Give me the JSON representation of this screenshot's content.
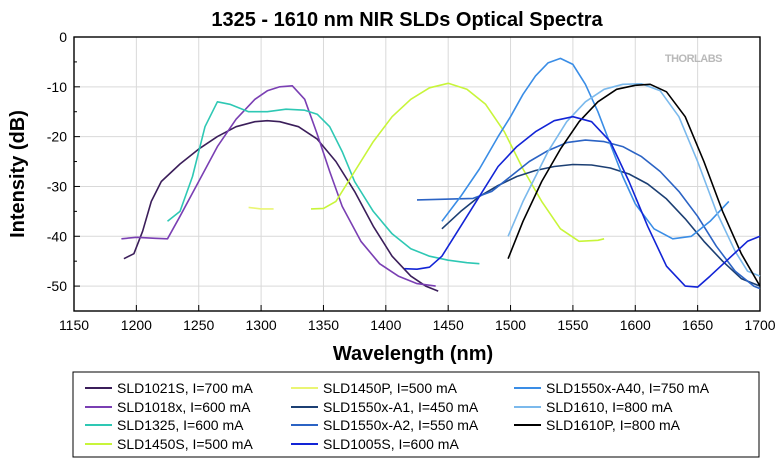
{
  "chart_data": {
    "type": "line",
    "title": "1325 - 1610 nm NIR SLDs Optical Spectra",
    "xlabel": "Wavelength (nm)",
    "ylabel": "Intensity (dB)",
    "xlim": [
      1150,
      1700
    ],
    "ylim": [
      -55,
      0
    ],
    "xticks": [
      1150,
      1200,
      1250,
      1300,
      1350,
      1400,
      1450,
      1500,
      1550,
      1600,
      1650,
      1700
    ],
    "yticks": [
      0,
      -10,
      -20,
      -30,
      -40,
      -50
    ],
    "grid": true,
    "legend_position": "bottom",
    "brand": "THORLABS",
    "series": [
      {
        "name": "SLD1021S, I=700 mA",
        "color": "#3b1e5a",
        "x": [
          1190,
          1198,
          1205,
          1212,
          1220,
          1235,
          1250,
          1265,
          1280,
          1295,
          1305,
          1315,
          1330,
          1345,
          1360,
          1375,
          1390,
          1405,
          1420,
          1432,
          1442
        ],
        "y": [
          -44.5,
          -43.5,
          -39,
          -33,
          -29,
          -25.5,
          -22.5,
          -20,
          -18,
          -17,
          -16.8,
          -17,
          -18,
          -20.5,
          -25,
          -31,
          -38,
          -44,
          -48,
          -50,
          -51
        ]
      },
      {
        "name": "SLD1018x, I=600 mA",
        "color": "#7a3fb3",
        "x": [
          1188,
          1200,
          1215,
          1225,
          1235,
          1250,
          1265,
          1280,
          1295,
          1305,
          1315,
          1325,
          1335,
          1345,
          1355,
          1365,
          1380,
          1395,
          1410,
          1425,
          1440
        ],
        "y": [
          -40.5,
          -40.2,
          -40.4,
          -40.5,
          -36,
          -29,
          -22,
          -16.5,
          -12.5,
          -10.8,
          -10,
          -9.8,
          -12.5,
          -19.5,
          -27,
          -34,
          -41,
          -45.5,
          -48,
          -49.5,
          -50
        ]
      },
      {
        "name": "SLD1325, I=600 mA",
        "color": "#2ec8b4",
        "x": [
          1225,
          1235,
          1245,
          1255,
          1265,
          1275,
          1290,
          1305,
          1320,
          1335,
          1345,
          1355,
          1365,
          1375,
          1390,
          1405,
          1420,
          1435,
          1450,
          1465,
          1475
        ],
        "y": [
          -37,
          -35,
          -28,
          -18,
          -13,
          -13.5,
          -15,
          -15,
          -14.5,
          -14.7,
          -15.5,
          -18,
          -23,
          -29,
          -35,
          -39.5,
          -42.5,
          -44,
          -44.8,
          -45.3,
          -45.5
        ]
      },
      {
        "name": "SLD1450S, I=500 mA",
        "color": "#c8f53a",
        "x": [
          1340,
          1350,
          1360,
          1375,
          1390,
          1405,
          1420,
          1435,
          1450,
          1465,
          1480,
          1495,
          1510,
          1525,
          1540,
          1555,
          1570,
          1575
        ],
        "y": [
          -34.5,
          -34.4,
          -33,
          -27,
          -21,
          -16,
          -12.5,
          -10.2,
          -9.3,
          -10.5,
          -13.5,
          -19,
          -26.5,
          -33,
          -38.5,
          -41,
          -40.8,
          -40.5
        ]
      },
      {
        "name": "SLD1450P, I=500 mA",
        "color": "#eaf573",
        "x": [
          1290,
          1300,
          1310
        ],
        "y": [
          -34.2,
          -34.5,
          -34.5
        ]
      },
      {
        "name": "SLD1550x-A1, I=450 mA",
        "color": "#1c3f73",
        "x": [
          1445,
          1460,
          1475,
          1490,
          1505,
          1520,
          1535,
          1550,
          1565,
          1580,
          1595,
          1610,
          1625,
          1640,
          1655,
          1670,
          1685,
          1700
        ],
        "y": [
          -38.5,
          -35,
          -32,
          -29.8,
          -28,
          -26.8,
          -26,
          -25.6,
          -25.7,
          -26.3,
          -27.5,
          -29.5,
          -32.5,
          -36.5,
          -41,
          -45,
          -48.5,
          -50
        ]
      },
      {
        "name": "SLD1550x-A2, I=550 mA",
        "color": "#2b63c4",
        "x": [
          1425,
          1440,
          1455,
          1470,
          1485,
          1500,
          1515,
          1530,
          1545,
          1560,
          1575,
          1590,
          1605,
          1620,
          1635,
          1650,
          1665,
          1680,
          1695,
          1700
        ],
        "y": [
          -32.7,
          -32.6,
          -32.5,
          -32.4,
          -31,
          -28,
          -25,
          -22.8,
          -21.2,
          -20.7,
          -21,
          -22,
          -24,
          -27,
          -31,
          -36,
          -42,
          -47,
          -50,
          -50.5
        ]
      },
      {
        "name": "SLD1550x-A40, I=750 mA",
        "color": "#3a8de6",
        "x": [
          1445,
          1460,
          1475,
          1490,
          1500,
          1510,
          1520,
          1530,
          1540,
          1550,
          1560,
          1570,
          1580,
          1590,
          1600,
          1615,
          1630,
          1645,
          1660,
          1675
        ],
        "y": [
          -37,
          -32,
          -26.5,
          -20,
          -16,
          -11.5,
          -7.8,
          -5.2,
          -4.3,
          -5.5,
          -9.5,
          -15,
          -21.5,
          -28,
          -33.5,
          -38.5,
          -40.5,
          -40,
          -37,
          -33
        ]
      },
      {
        "name": "SLD1610, I=800 mA",
        "color": "#7bb9ec",
        "x": [
          1498,
          1510,
          1520,
          1530,
          1545,
          1560,
          1575,
          1590,
          1605,
          1620,
          1635,
          1650,
          1665,
          1680,
          1690,
          1700
        ],
        "y": [
          -40,
          -33,
          -28,
          -23,
          -17,
          -13,
          -10.5,
          -9.5,
          -9.4,
          -10.8,
          -16,
          -25,
          -35,
          -43,
          -47,
          -48
        ]
      },
      {
        "name": "SLD1610P, I=800 mA",
        "color": "#000000",
        "x": [
          1498,
          1510,
          1525,
          1540,
          1555,
          1570,
          1585,
          1600,
          1612,
          1625,
          1640,
          1655,
          1670,
          1685,
          1700
        ],
        "y": [
          -44.5,
          -37,
          -29,
          -22.5,
          -17,
          -13,
          -10.5,
          -9.7,
          -9.5,
          -11,
          -16,
          -25,
          -35,
          -43.5,
          -50
        ]
      },
      {
        "name": "SLD1005S, I=600 mA",
        "color": "#1224d6",
        "x": [
          1415,
          1425,
          1435,
          1445,
          1460,
          1475,
          1490,
          1505,
          1520,
          1535,
          1550,
          1565,
          1580,
          1595,
          1610,
          1625,
          1640,
          1650,
          1660,
          1675,
          1690,
          1700
        ],
        "y": [
          -46.5,
          -46.6,
          -46.2,
          -44,
          -38,
          -32,
          -26,
          -22,
          -19,
          -16.8,
          -16,
          -17,
          -21,
          -29,
          -38,
          -46,
          -50,
          -50.2,
          -48,
          -44.5,
          -41,
          -40
        ]
      }
    ]
  }
}
